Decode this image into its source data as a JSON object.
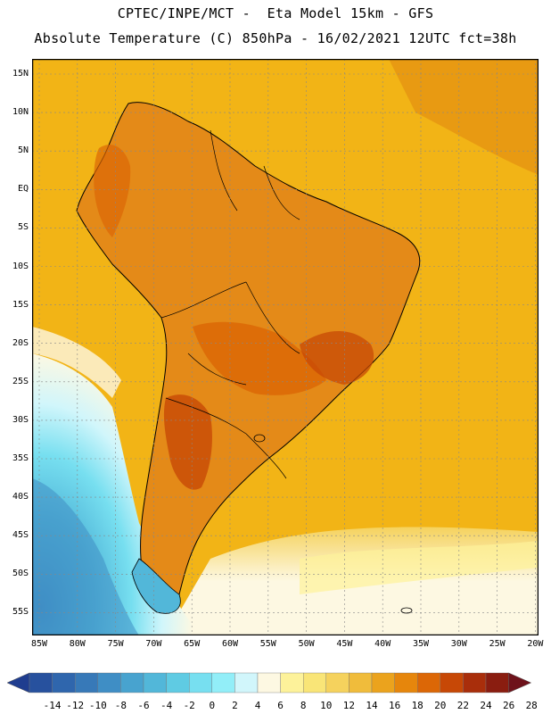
{
  "header": {
    "line1": "CPTEC/INPE/MCT -  Eta Model 15km - GFS",
    "line2": "Absolute Temperature (C) 850hPa - 16/02/2021 12UTC fct=38h"
  },
  "map": {
    "lat_labels": [
      "15N",
      "10N",
      "5N",
      "EQ",
      "5S",
      "10S",
      "15S",
      "20S",
      "25S",
      "30S",
      "35S",
      "40S",
      "45S",
      "50S",
      "55S"
    ],
    "lon_labels": [
      "85W",
      "80W",
      "75W",
      "70W",
      "65W",
      "60W",
      "55W",
      "50W",
      "45W",
      "40W",
      "35W",
      "30W",
      "25W",
      "20W"
    ],
    "ocean_color": "#f2b416",
    "land_color": "#e48a18"
  },
  "colorbar": {
    "labels": [
      "-14",
      "-12",
      "-10",
      "-8",
      "-6",
      "-4",
      "-2",
      "0",
      "2",
      "4",
      "6",
      "8",
      "10",
      "12",
      "14",
      "16",
      "18",
      "20",
      "22",
      "24",
      "26",
      "28"
    ],
    "colors": [
      "#1f3d8f",
      "#27519e",
      "#2f66ad",
      "#3779b8",
      "#3f8ec5",
      "#48a3cf",
      "#52b7d9",
      "#5fcbe3",
      "#77dff0",
      "#92eef8",
      "#d1f6fb",
      "#fdf8e2",
      "#fdf29a",
      "#f9e577",
      "#f5d25d",
      "#f0bc3b",
      "#eba31d",
      "#e6860c",
      "#dc6706",
      "#c74806",
      "#a92e0b",
      "#8a1d10",
      "#6e121b"
    ]
  }
}
